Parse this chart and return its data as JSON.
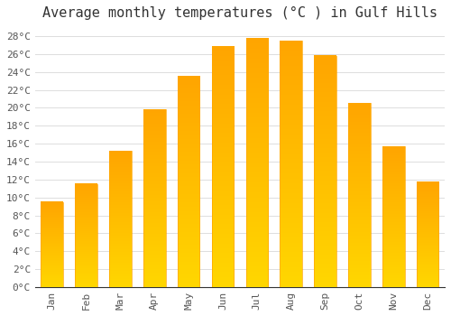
{
  "title": "Average monthly temperatures (°C ) in Gulf Hills",
  "months": [
    "Jan",
    "Feb",
    "Mar",
    "Apr",
    "May",
    "Jun",
    "Jul",
    "Aug",
    "Sep",
    "Oct",
    "Nov",
    "Dec"
  ],
  "values": [
    9.5,
    11.5,
    15.2,
    19.8,
    23.5,
    26.8,
    27.8,
    27.5,
    25.8,
    20.5,
    15.7,
    11.7
  ],
  "bar_color_top": "#FFA500",
  "bar_color_bottom": "#FFD700",
  "background_color": "#FFFFFF",
  "grid_color": "#DDDDDD",
  "ylim": [
    0,
    29
  ],
  "title_fontsize": 11,
  "tick_fontsize": 8,
  "font_family": "monospace"
}
